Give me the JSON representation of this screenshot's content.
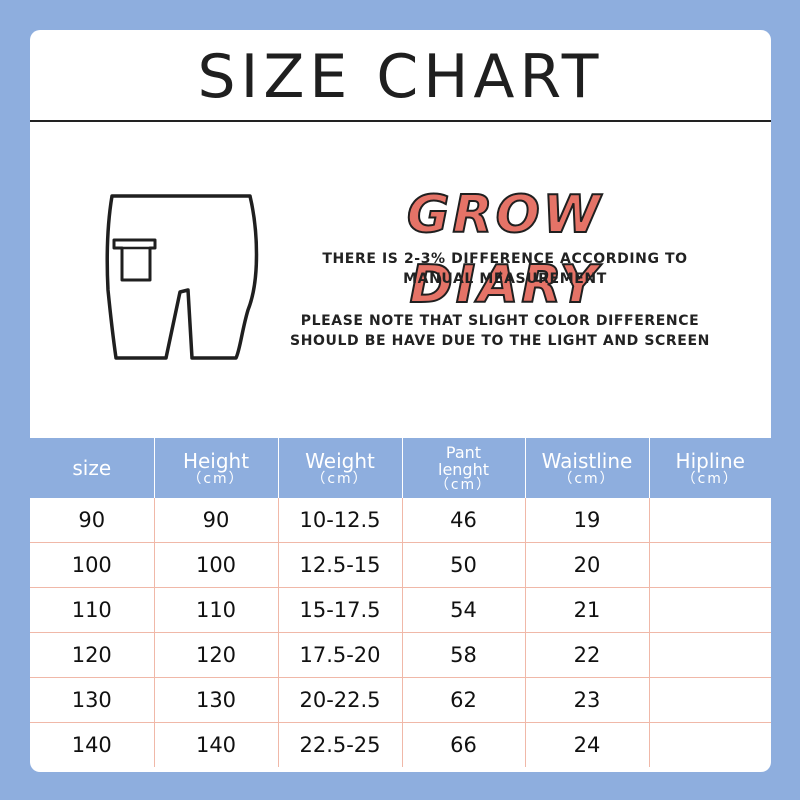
{
  "title": "SIZE CHART",
  "brand": "GROW DIARY",
  "notes": {
    "measurement": "THERE IS 2-3% DIFFERENCE ACCORDING TO MANUAL MEASUREMENT",
    "color": "PLEASE NOTE THAT SLIGHT COLOR DIFFERENCE SHOULD BE HAVE DUE TO THE LIGHT AND SCREEN"
  },
  "colors": {
    "background": "#8eaede",
    "header": "#8eaede",
    "brand": "#e57367",
    "grid": "#f0b8a8"
  },
  "icon": "shorts-with-pocket-icon",
  "table": {
    "unit": "（cm）",
    "headers": [
      "size",
      "Height",
      "Weight",
      "Pant lenght",
      "Waistline",
      "Hipline"
    ],
    "rows": [
      [
        "90",
        "90",
        "10-12.5",
        "46",
        "19",
        ""
      ],
      [
        "100",
        "100",
        "12.5-15",
        "50",
        "20",
        ""
      ],
      [
        "110",
        "110",
        "15-17.5",
        "54",
        "21",
        ""
      ],
      [
        "120",
        "120",
        "17.5-20",
        "58",
        "22",
        ""
      ],
      [
        "130",
        "130",
        "20-22.5",
        "62",
        "23",
        ""
      ],
      [
        "140",
        "140",
        "22.5-25",
        "66",
        "24",
        ""
      ]
    ]
  }
}
